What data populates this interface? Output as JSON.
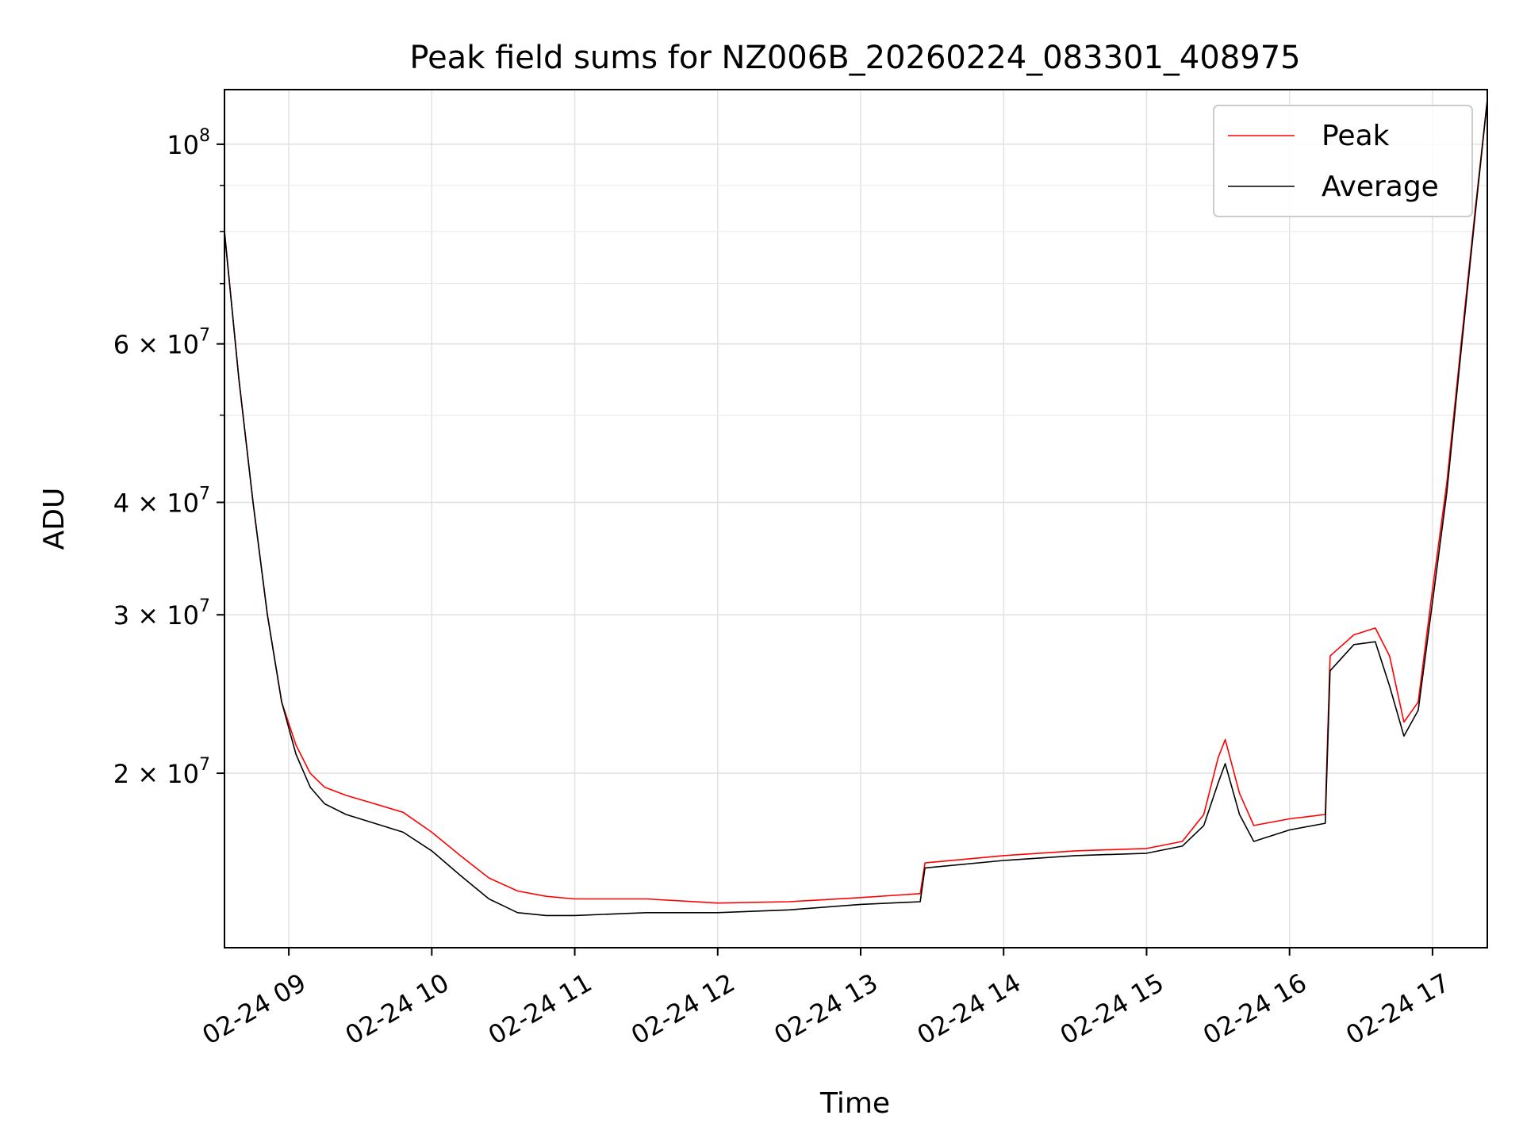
{
  "chart_data": {
    "type": "line",
    "title": "Peak field sums for NZ006B_20260224_083301_408975",
    "xlabel": "Time",
    "ylabel": "ADU",
    "yscale": "log",
    "xlim": [
      "2026-02-24 08:33",
      "2026-02-24 17:23"
    ],
    "ylim": [
      12800000,
      115000000
    ],
    "grid": true,
    "legend_position": "top-right",
    "x_ticks": [
      {
        "value": "2026-02-24 09:00",
        "label": "02-24 09"
      },
      {
        "value": "2026-02-24 10:00",
        "label": "02-24 10"
      },
      {
        "value": "2026-02-24 11:00",
        "label": "02-24 11"
      },
      {
        "value": "2026-02-24 12:00",
        "label": "02-24 12"
      },
      {
        "value": "2026-02-24 13:00",
        "label": "02-24 13"
      },
      {
        "value": "2026-02-24 14:00",
        "label": "02-24 14"
      },
      {
        "value": "2026-02-24 15:00",
        "label": "02-24 15"
      },
      {
        "value": "2026-02-24 16:00",
        "label": "02-24 16"
      },
      {
        "value": "2026-02-24 17:00",
        "label": "02-24 17"
      }
    ],
    "y_ticks": [
      {
        "value": 100000000,
        "base": "10",
        "exp": "8",
        "mant": ""
      },
      {
        "value": 60000000,
        "base": "10",
        "exp": "7",
        "mant": "6 × "
      },
      {
        "value": 40000000,
        "base": "10",
        "exp": "7",
        "mant": "4 × "
      },
      {
        "value": 30000000,
        "base": "10",
        "exp": "7",
        "mant": "3 × "
      },
      {
        "value": 20000000,
        "base": "10",
        "exp": "7",
        "mant": "2 × "
      }
    ],
    "series": [
      {
        "name": "Peak",
        "color": "#ff0000",
        "points": [
          [
            "2026-02-24 08:33",
            80000000
          ],
          [
            "2026-02-24 08:39",
            55000000
          ],
          [
            "2026-02-24 08:45",
            40000000
          ],
          [
            "2026-02-24 08:51",
            30000000
          ],
          [
            "2026-02-24 08:57",
            24000000
          ],
          [
            "2026-02-24 09:03",
            21500000
          ],
          [
            "2026-02-24 09:09",
            20000000
          ],
          [
            "2026-02-24 09:15",
            19300000
          ],
          [
            "2026-02-24 09:24",
            18900000
          ],
          [
            "2026-02-24 09:36",
            18500000
          ],
          [
            "2026-02-24 09:48",
            18100000
          ],
          [
            "2026-02-24 10:00",
            17200000
          ],
          [
            "2026-02-24 10:12",
            16200000
          ],
          [
            "2026-02-24 10:24",
            15300000
          ],
          [
            "2026-02-24 10:36",
            14800000
          ],
          [
            "2026-02-24 10:48",
            14600000
          ],
          [
            "2026-02-24 11:00",
            14500000
          ],
          [
            "2026-02-24 11:30",
            14500000
          ],
          [
            "2026-02-24 12:00",
            14350000
          ],
          [
            "2026-02-24 12:30",
            14400000
          ],
          [
            "2026-02-24 13:00",
            14550000
          ],
          [
            "2026-02-24 13:25",
            14700000
          ],
          [
            "2026-02-24 13:27",
            15900000
          ],
          [
            "2026-02-24 14:00",
            16200000
          ],
          [
            "2026-02-24 14:30",
            16400000
          ],
          [
            "2026-02-24 15:00",
            16500000
          ],
          [
            "2026-02-24 15:15",
            16800000
          ],
          [
            "2026-02-24 15:24",
            18000000
          ],
          [
            "2026-02-24 15:30",
            20800000
          ],
          [
            "2026-02-24 15:33",
            21800000
          ],
          [
            "2026-02-24 15:39",
            19000000
          ],
          [
            "2026-02-24 15:45",
            17500000
          ],
          [
            "2026-02-24 16:00",
            17800000
          ],
          [
            "2026-02-24 16:15",
            18000000
          ],
          [
            "2026-02-24 16:17",
            27000000
          ],
          [
            "2026-02-24 16:27",
            28500000
          ],
          [
            "2026-02-24 16:36",
            29000000
          ],
          [
            "2026-02-24 16:42",
            27000000
          ],
          [
            "2026-02-24 16:48",
            22800000
          ],
          [
            "2026-02-24 16:54",
            24000000
          ],
          [
            "2026-02-24 17:00",
            32000000
          ],
          [
            "2026-02-24 17:06",
            42000000
          ],
          [
            "2026-02-24 17:12",
            60000000
          ],
          [
            "2026-02-24 17:18",
            85000000
          ],
          [
            "2026-02-24 17:23",
            112000000
          ]
        ]
      },
      {
        "name": "Average",
        "color": "#000000",
        "points": [
          [
            "2026-02-24 08:33",
            80000000
          ],
          [
            "2026-02-24 08:39",
            55000000
          ],
          [
            "2026-02-24 08:45",
            40000000
          ],
          [
            "2026-02-24 08:51",
            30000000
          ],
          [
            "2026-02-24 08:57",
            24000000
          ],
          [
            "2026-02-24 09:03",
            21000000
          ],
          [
            "2026-02-24 09:09",
            19300000
          ],
          [
            "2026-02-24 09:15",
            18500000
          ],
          [
            "2026-02-24 09:24",
            18000000
          ],
          [
            "2026-02-24 09:36",
            17600000
          ],
          [
            "2026-02-24 09:48",
            17200000
          ],
          [
            "2026-02-24 10:00",
            16400000
          ],
          [
            "2026-02-24 10:12",
            15400000
          ],
          [
            "2026-02-24 10:24",
            14500000
          ],
          [
            "2026-02-24 10:36",
            14000000
          ],
          [
            "2026-02-24 10:48",
            13900000
          ],
          [
            "2026-02-24 11:00",
            13900000
          ],
          [
            "2026-02-24 11:30",
            14000000
          ],
          [
            "2026-02-24 12:00",
            14000000
          ],
          [
            "2026-02-24 12:30",
            14100000
          ],
          [
            "2026-02-24 13:00",
            14300000
          ],
          [
            "2026-02-24 13:25",
            14400000
          ],
          [
            "2026-02-24 13:27",
            15700000
          ],
          [
            "2026-02-24 14:00",
            16000000
          ],
          [
            "2026-02-24 14:30",
            16200000
          ],
          [
            "2026-02-24 15:00",
            16300000
          ],
          [
            "2026-02-24 15:15",
            16600000
          ],
          [
            "2026-02-24 15:24",
            17500000
          ],
          [
            "2026-02-24 15:30",
            19500000
          ],
          [
            "2026-02-24 15:33",
            20500000
          ],
          [
            "2026-02-24 15:39",
            18000000
          ],
          [
            "2026-02-24 15:45",
            16800000
          ],
          [
            "2026-02-24 16:00",
            17300000
          ],
          [
            "2026-02-24 16:15",
            17600000
          ],
          [
            "2026-02-24 16:17",
            26000000
          ],
          [
            "2026-02-24 16:27",
            27800000
          ],
          [
            "2026-02-24 16:36",
            28000000
          ],
          [
            "2026-02-24 16:42",
            25000000
          ],
          [
            "2026-02-24 16:48",
            22000000
          ],
          [
            "2026-02-24 16:54",
            23500000
          ],
          [
            "2026-02-24 17:00",
            31000000
          ],
          [
            "2026-02-24 17:06",
            41000000
          ],
          [
            "2026-02-24 17:12",
            59000000
          ],
          [
            "2026-02-24 17:18",
            84000000
          ],
          [
            "2026-02-24 17:23",
            112000000
          ]
        ]
      }
    ]
  }
}
